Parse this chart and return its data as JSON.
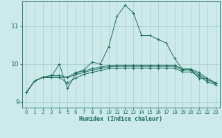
{
  "title": "",
  "xlabel": "Humidex (Indice chaleur)",
  "ylabel": "",
  "bg_color": "#cceaea",
  "grid_color": "#aacccc",
  "line_color": "#1a6b5a",
  "xlim": [
    -0.5,
    23.5
  ],
  "ylim": [
    8.85,
    11.65
  ],
  "yticks": [
    9,
    10,
    11
  ],
  "xticks": [
    0,
    1,
    2,
    3,
    4,
    5,
    6,
    7,
    8,
    9,
    10,
    11,
    12,
    13,
    14,
    15,
    16,
    17,
    18,
    19,
    20,
    21,
    22,
    23
  ],
  "series": [
    [
      9.25,
      9.55,
      9.65,
      9.65,
      10.0,
      9.35,
      9.75,
      9.85,
      10.05,
      10.0,
      10.45,
      11.25,
      11.55,
      11.35,
      10.75,
      10.75,
      10.65,
      10.55,
      10.15,
      9.85,
      9.85,
      9.62,
      9.62,
      9.5
    ],
    [
      9.25,
      9.55,
      9.65,
      9.7,
      9.7,
      9.65,
      9.78,
      9.82,
      9.88,
      9.92,
      9.96,
      9.97,
      9.97,
      9.97,
      9.97,
      9.97,
      9.97,
      9.97,
      9.97,
      9.87,
      9.87,
      9.77,
      9.62,
      9.5
    ],
    [
      9.25,
      9.55,
      9.65,
      9.65,
      9.65,
      9.65,
      9.72,
      9.78,
      9.84,
      9.88,
      9.93,
      9.94,
      9.94,
      9.94,
      9.94,
      9.94,
      9.94,
      9.94,
      9.94,
      9.84,
      9.84,
      9.72,
      9.58,
      9.48
    ],
    [
      9.25,
      9.55,
      9.65,
      9.65,
      9.65,
      9.5,
      9.63,
      9.73,
      9.78,
      9.83,
      9.88,
      9.89,
      9.89,
      9.89,
      9.89,
      9.89,
      9.89,
      9.89,
      9.89,
      9.79,
      9.79,
      9.68,
      9.53,
      9.45
    ]
  ]
}
